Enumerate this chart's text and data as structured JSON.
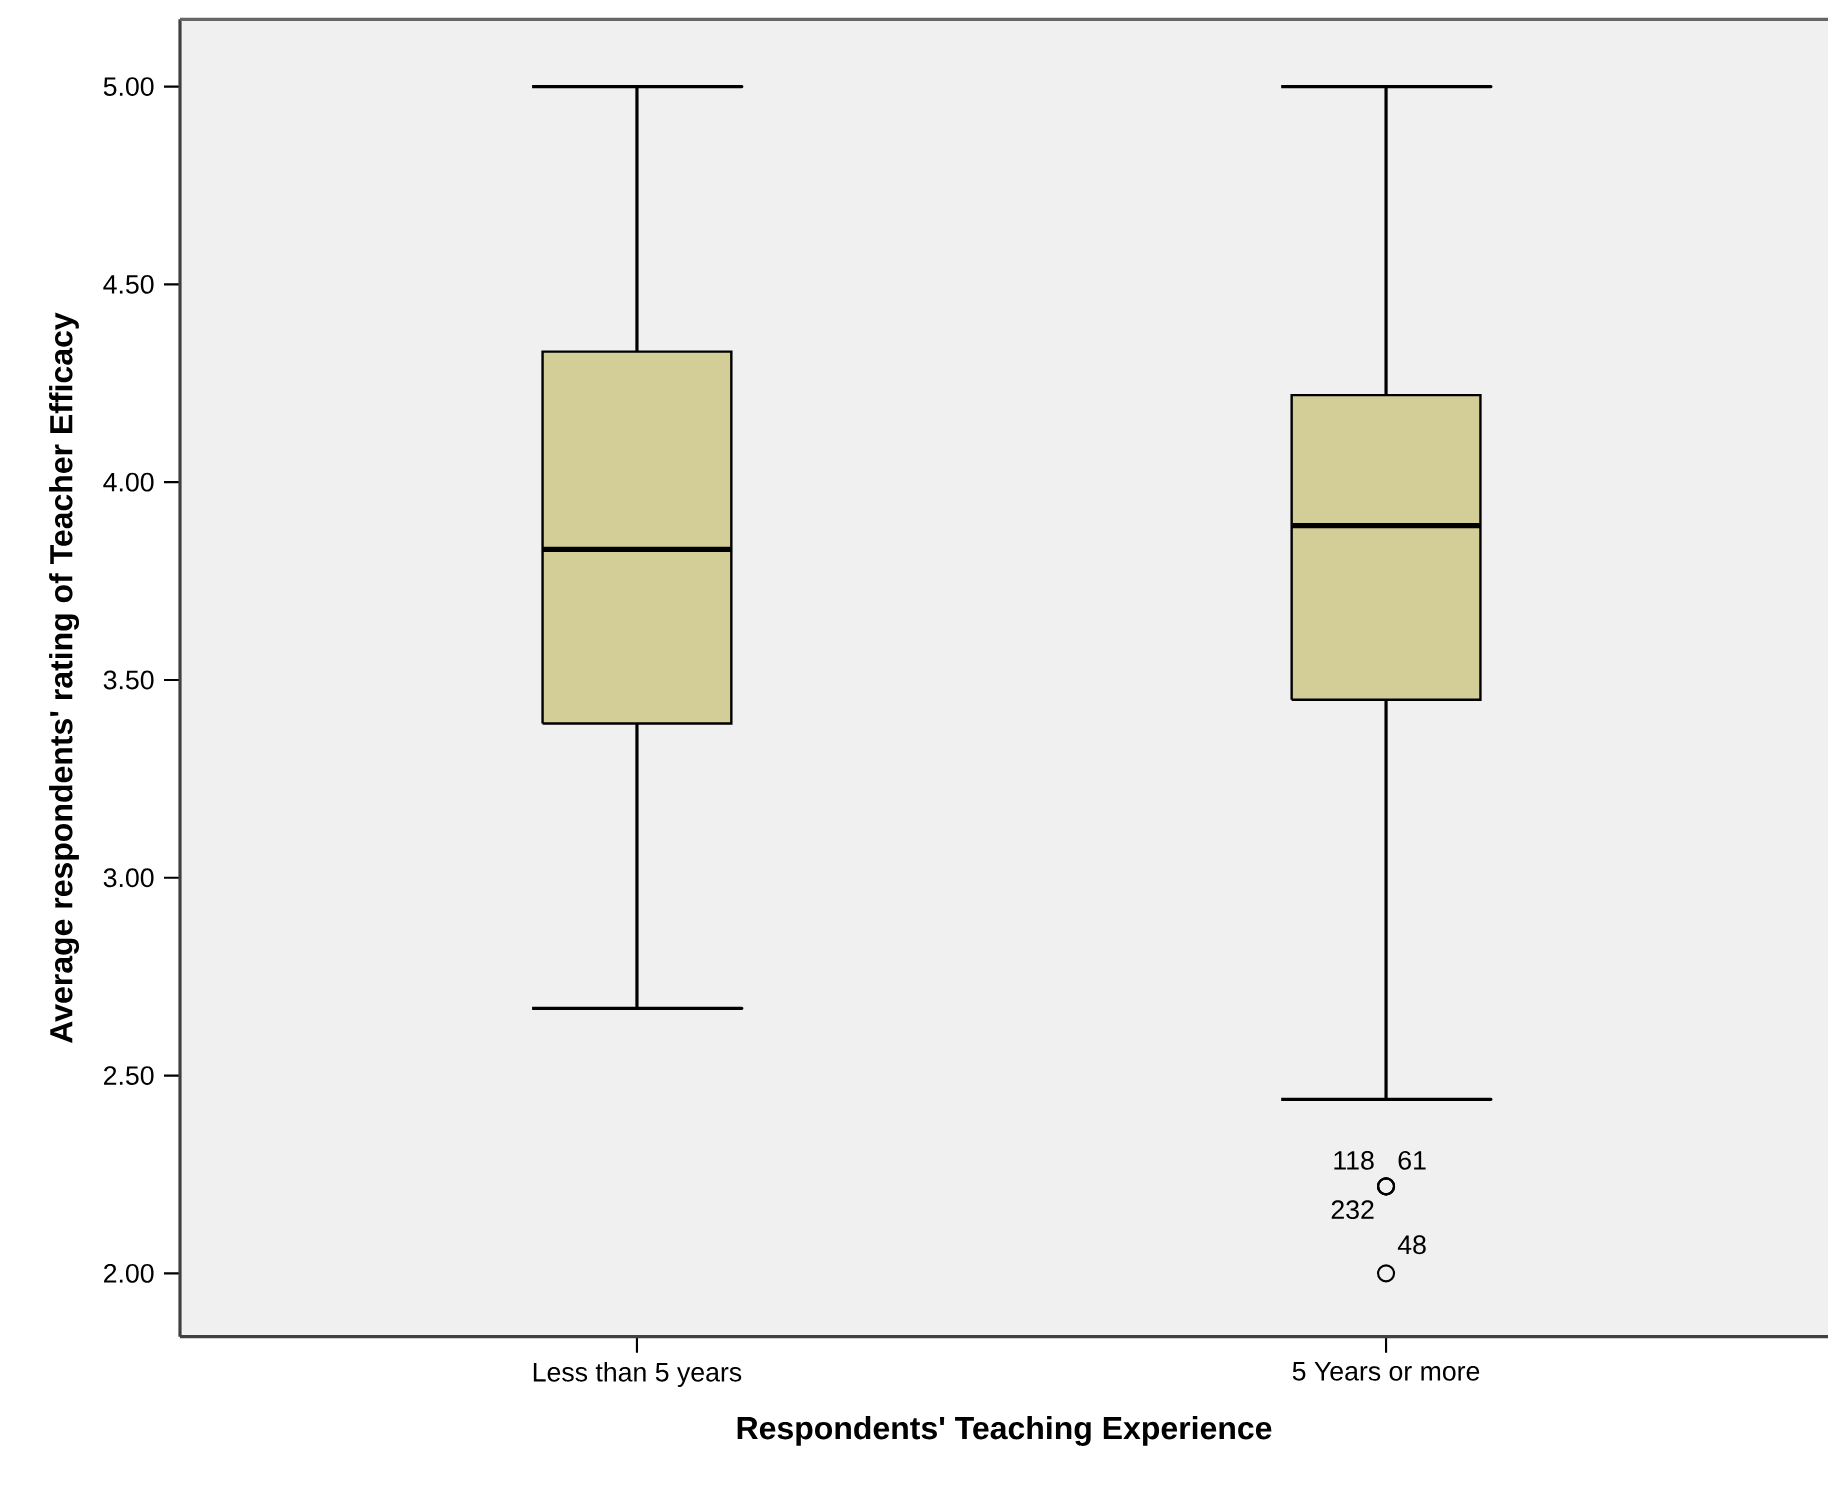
{
  "chart_data": {
    "type": "box",
    "xlabel": "Respondents' Teaching Experience",
    "ylabel": "Average respondents' rating of Teacher Efficacy",
    "categories": [
      "Less than 5 years",
      "5 Years or more"
    ],
    "color": "#d3ce98",
    "boxes": [
      {
        "low": 2.67,
        "q1": 3.39,
        "median": 3.83,
        "q3": 4.33,
        "high": 5.0
      },
      {
        "low": 2.44,
        "q1": 3.45,
        "median": 3.89,
        "q3": 4.22,
        "high": 5.0,
        "outliers": [
          2.22,
          2.22,
          2.22,
          2.0
        ]
      }
    ],
    "ylim": [
      1.84,
      5.17
    ],
    "yticks": [
      {
        "value": 2.0,
        "label": "2.00"
      },
      {
        "value": 2.5,
        "label": "2.50"
      },
      {
        "value": 3.0,
        "label": "3.00"
      },
      {
        "value": 3.5,
        "label": "3.50"
      },
      {
        "value": 4.0,
        "label": "4.00"
      },
      {
        "value": 4.5,
        "label": "4.50"
      },
      {
        "value": 5.0,
        "label": "5.00"
      }
    ],
    "annotations": [
      "118",
      "61",
      "232",
      "48"
    ]
  }
}
